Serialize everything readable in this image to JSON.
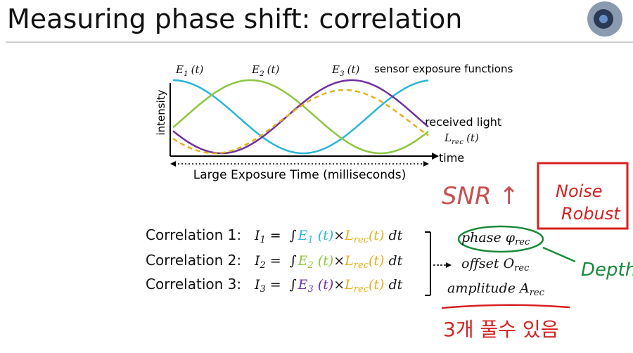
{
  "title": "Measuring phase shift: correlation",
  "plot": {
    "y_label": "intensity",
    "x_label": "time",
    "exposure_label": "Large Exposure Time (milliseconds)",
    "sensor_label": "sensor exposure functions",
    "received_label": "received light",
    "curves": [
      {
        "name": "E",
        "sub": "1",
        "arg": "(t)"
      },
      {
        "name": "E",
        "sub": "2",
        "arg": "(t)"
      },
      {
        "name": "E",
        "sub": "3",
        "arg": "(t)"
      }
    ],
    "received": {
      "name": "L",
      "sub": "rec",
      "arg": "(t)"
    }
  },
  "equations": [
    {
      "label": "Correlation 1:",
      "lhs": "I",
      "lhs_sub": "1",
      "eq": "=",
      "integral": "∫",
      "func": "E",
      "func_sub": "1",
      "func_arg": "(t)",
      "times": "×",
      "light": "L",
      "light_sub": "rec",
      "light_arg": "(t)",
      "dt": "dt"
    },
    {
      "label": "Correlation 2:",
      "lhs": "I",
      "lhs_sub": "2",
      "eq": "=",
      "integral": "∫",
      "func": "E",
      "func_sub": "2",
      "func_arg": "(t)",
      "times": "×",
      "light": "L",
      "light_sub": "rec",
      "light_arg": "(t)",
      "dt": "dt"
    },
    {
      "label": "Correlation 3:",
      "lhs": "I",
      "lhs_sub": "3",
      "eq": "=",
      "integral": "∫",
      "func": "E",
      "func_sub": "3",
      "func_arg": "(t)",
      "times": "×",
      "light": "L",
      "light_sub": "rec",
      "light_arg": "(t)",
      "dt": "dt"
    }
  ],
  "outputs": [
    {
      "label": "phase φ",
      "sub": "rec"
    },
    {
      "label": "offset O",
      "sub": "rec"
    },
    {
      "label": "amplitude A",
      "sub": "rec"
    }
  ],
  "annotations": {
    "snr": "SNR ↑",
    "noise": "Noise",
    "robust": "Robust",
    "depth": "Depth",
    "korean": "3개 풀수 있음"
  }
}
